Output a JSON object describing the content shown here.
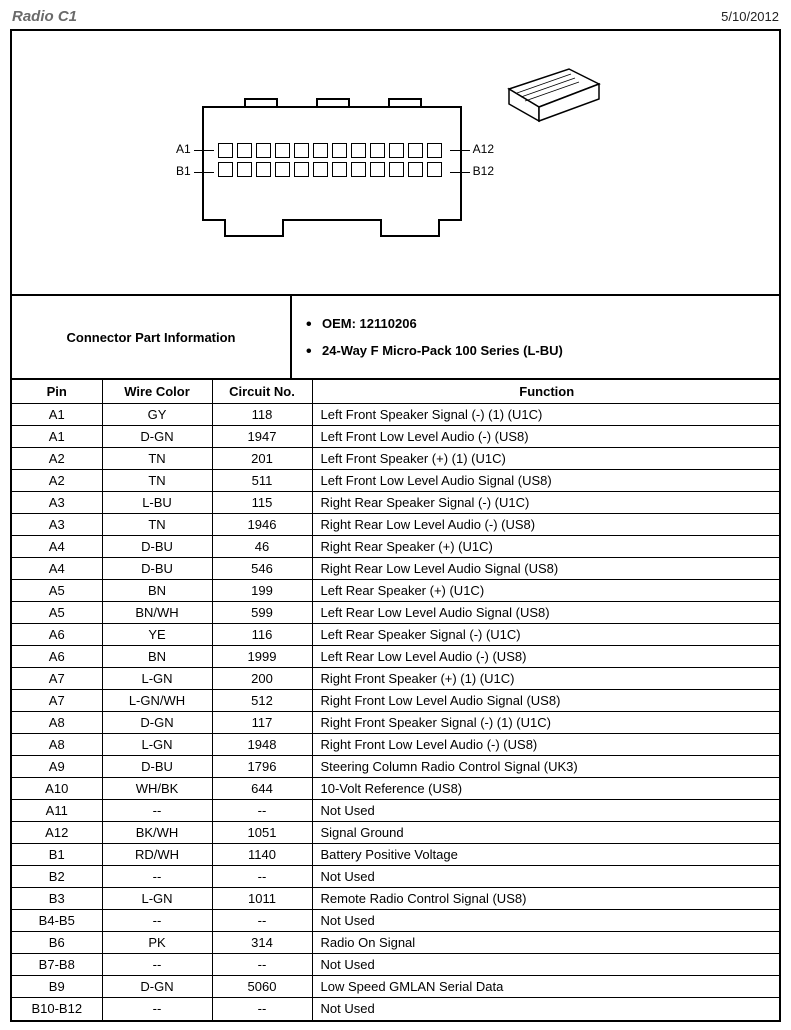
{
  "header": {
    "title": "Radio C1",
    "date": "5/10/2012"
  },
  "diagram": {
    "pin_labels": {
      "a1": "A1",
      "a12": "A12",
      "b1": "B1",
      "b12": "B12"
    },
    "pins_per_row": 12
  },
  "part_info": {
    "label": "Connector Part Information",
    "oem_label": "OEM: 12110206",
    "series_label": "24-Way F Micro-Pack 100 Series (L-BU)"
  },
  "table": {
    "headers": {
      "pin": "Pin",
      "wire": "Wire Color",
      "circuit": "Circuit No.",
      "function": "Function"
    },
    "rows": [
      {
        "pin": "A1",
        "wire": "GY",
        "circuit": "118",
        "func": "Left Front Speaker Signal (-) (1) (U1C)"
      },
      {
        "pin": "A1",
        "wire": "D-GN",
        "circuit": "1947",
        "func": "Left Front Low Level Audio (-) (US8)"
      },
      {
        "pin": "A2",
        "wire": "TN",
        "circuit": "201",
        "func": "Left Front Speaker (+) (1) (U1C)"
      },
      {
        "pin": "A2",
        "wire": "TN",
        "circuit": "511",
        "func": "Left Front Low Level Audio Signal (US8)"
      },
      {
        "pin": "A3",
        "wire": "L-BU",
        "circuit": "115",
        "func": "Right Rear Speaker Signal (-) (U1C)"
      },
      {
        "pin": "A3",
        "wire": "TN",
        "circuit": "1946",
        "func": "Right Rear Low Level Audio (-) (US8)"
      },
      {
        "pin": "A4",
        "wire": "D-BU",
        "circuit": "46",
        "func": "Right Rear Speaker (+) (U1C)"
      },
      {
        "pin": "A4",
        "wire": "D-BU",
        "circuit": "546",
        "func": "Right Rear Low Level Audio Signal (US8)"
      },
      {
        "pin": "A5",
        "wire": "BN",
        "circuit": "199",
        "func": "Left Rear Speaker (+) (U1C)"
      },
      {
        "pin": "A5",
        "wire": "BN/WH",
        "circuit": "599",
        "func": "Left Rear Low Level Audio Signal (US8)"
      },
      {
        "pin": "A6",
        "wire": "YE",
        "circuit": "116",
        "func": "Left Rear Speaker Signal (-) (U1C)"
      },
      {
        "pin": "A6",
        "wire": "BN",
        "circuit": "1999",
        "func": "Left Rear Low Level Audio (-) (US8)"
      },
      {
        "pin": "A7",
        "wire": "L-GN",
        "circuit": "200",
        "func": "Right Front Speaker (+) (1) (U1C)"
      },
      {
        "pin": "A7",
        "wire": "L-GN/WH",
        "circuit": "512",
        "func": "Right Front Low Level Audio Signal (US8)"
      },
      {
        "pin": "A8",
        "wire": "D-GN",
        "circuit": "117",
        "func": "Right Front Speaker Signal (-) (1) (U1C)"
      },
      {
        "pin": "A8",
        "wire": "L-GN",
        "circuit": "1948",
        "func": "Right Front Low Level Audio (-) (US8)"
      },
      {
        "pin": "A9",
        "wire": "D-BU",
        "circuit": "1796",
        "func": "Steering Column Radio Control Signal (UK3)"
      },
      {
        "pin": "A10",
        "wire": "WH/BK",
        "circuit": "644",
        "func": "10-Volt Reference (US8)"
      },
      {
        "pin": "A11",
        "wire": "--",
        "circuit": "--",
        "func": "Not Used"
      },
      {
        "pin": "A12",
        "wire": "BK/WH",
        "circuit": "1051",
        "func": "Signal Ground"
      },
      {
        "pin": "B1",
        "wire": "RD/WH",
        "circuit": "1140",
        "func": "Battery Positive Voltage"
      },
      {
        "pin": "B2",
        "wire": "--",
        "circuit": "--",
        "func": "Not Used"
      },
      {
        "pin": "B3",
        "wire": "L-GN",
        "circuit": "1011",
        "func": "Remote Radio Control Signal (US8)"
      },
      {
        "pin": "B4-B5",
        "wire": "--",
        "circuit": "--",
        "func": "Not Used"
      },
      {
        "pin": "B6",
        "wire": "PK",
        "circuit": "314",
        "func": "Radio On Signal"
      },
      {
        "pin": "B7-B8",
        "wire": "--",
        "circuit": "--",
        "func": "Not Used"
      },
      {
        "pin": "B9",
        "wire": "D-GN",
        "circuit": "5060",
        "func": "Low Speed GMLAN Serial Data"
      },
      {
        "pin": "B10-B12",
        "wire": "--",
        "circuit": "--",
        "func": "Not Used"
      }
    ]
  }
}
